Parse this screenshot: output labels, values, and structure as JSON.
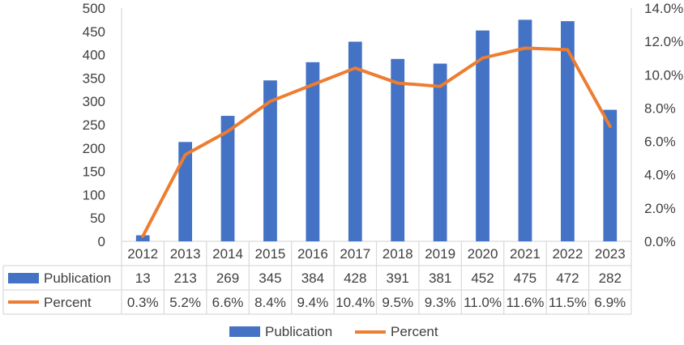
{
  "chart_data": {
    "type": "bar",
    "categories": [
      "2012",
      "2013",
      "2014",
      "2015",
      "2016",
      "2017",
      "2018",
      "2019",
      "2020",
      "2021",
      "2022",
      "2023"
    ],
    "series": [
      {
        "name": "Publication",
        "type": "bar",
        "axis": "left",
        "values": [
          13,
          213,
          269,
          345,
          384,
          428,
          391,
          381,
          452,
          475,
          472,
          282
        ],
        "labels": [
          "13",
          "213",
          "269",
          "345",
          "384",
          "428",
          "391",
          "381",
          "452",
          "475",
          "472",
          "282"
        ],
        "color": "#4472C4"
      },
      {
        "name": "Percent",
        "type": "line",
        "axis": "right",
        "values": [
          0.3,
          5.2,
          6.6,
          8.4,
          9.4,
          10.4,
          9.5,
          9.3,
          11.0,
          11.6,
          11.5,
          6.9
        ],
        "labels": [
          "0.3%",
          "5.2%",
          "6.6%",
          "8.4%",
          "9.4%",
          "10.4%",
          "9.5%",
          "9.3%",
          "11.0%",
          "11.6%",
          "11.5%",
          "6.9%"
        ],
        "color": "#ED7D31"
      }
    ],
    "y_left": {
      "min": 0,
      "max": 500,
      "ticks": [
        0,
        50,
        100,
        150,
        200,
        250,
        300,
        350,
        400,
        450,
        500
      ],
      "tick_labels": [
        "0",
        "50",
        "100",
        "150",
        "200",
        "250",
        "300",
        "350",
        "400",
        "450",
        "500"
      ]
    },
    "y_right": {
      "min": 0,
      "max": 14,
      "ticks": [
        0,
        2,
        4,
        6,
        8,
        10,
        12,
        14
      ],
      "tick_labels": [
        "0.0%",
        "2.0%",
        "4.0%",
        "6.0%",
        "8.0%",
        "10.0%",
        "12.0%",
        "14.0%"
      ]
    },
    "grid": false,
    "data_table": true,
    "legend_position": "bottom",
    "title": "",
    "xlabel": "",
    "ylabel": ""
  }
}
